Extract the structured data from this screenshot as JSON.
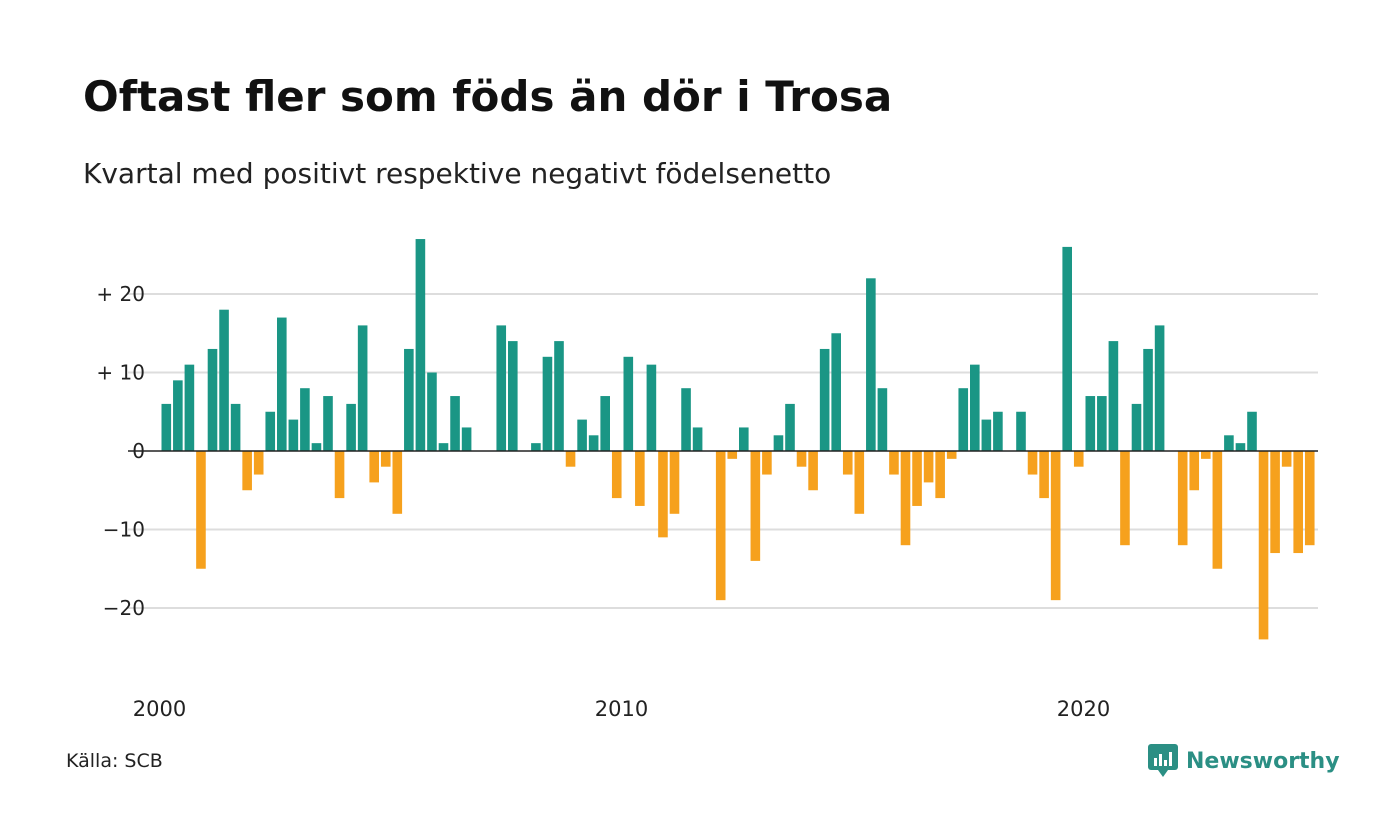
{
  "header": {
    "title": "Oftast fler som föds än dör i Trosa",
    "subtitle": "Kvartal med positivt respektive negativt födelsenetto"
  },
  "footer": {
    "source": "Källa: SCB",
    "brand": "Newsworthy"
  },
  "colors": {
    "positive": "#1a9685",
    "negative": "#f6a11d",
    "grid": "#dddddd",
    "zero_line": "#222222",
    "brand": "#2b8f84"
  },
  "chart_data": {
    "type": "bar",
    "title": "Oftast fler som föds än dör i Trosa",
    "subtitle": "Kvartal med positivt respektive negativt födelsenetto",
    "xlabel": "",
    "ylabel": "",
    "ylim": [
      -30,
      30
    ],
    "yticks": [
      {
        "value": 20,
        "label": "+ 20"
      },
      {
        "value": 10,
        "label": "+ 10"
      },
      {
        "value": 0,
        "label": "0"
      },
      {
        "value": -10,
        "label": "−10"
      },
      {
        "value": -20,
        "label": "−20"
      }
    ],
    "xticks": [
      {
        "index": 0,
        "label": "2000"
      },
      {
        "index": 40,
        "label": "2010"
      },
      {
        "index": 80,
        "label": "2020"
      }
    ],
    "grid": true,
    "start_period": "2000 Q1",
    "frequency": "quarter",
    "values": [
      6,
      9,
      11,
      -15,
      13,
      18,
      6,
      -5,
      -3,
      5,
      17,
      4,
      8,
      1,
      7,
      -6,
      6,
      16,
      -4,
      -2,
      -8,
      13,
      27,
      10,
      1,
      7,
      3,
      0,
      0,
      16,
      14,
      0,
      1,
      12,
      14,
      -2,
      4,
      2,
      7,
      -6,
      12,
      -7,
      11,
      -11,
      -8,
      8,
      3,
      0,
      -19,
      -1,
      3,
      -14,
      -3,
      2,
      6,
      -2,
      -5,
      13,
      15,
      -3,
      -8,
      22,
      8,
      -3,
      -12,
      -7,
      -4,
      -6,
      -1,
      8,
      11,
      4,
      5,
      0,
      5,
      -3,
      -6,
      -19,
      26,
      -2,
      7,
      7,
      14,
      -12,
      6,
      13,
      16,
      0,
      -12,
      -5,
      -1,
      -15,
      2,
      1,
      5,
      -24,
      -13,
      -2,
      -13,
      -12
    ]
  }
}
